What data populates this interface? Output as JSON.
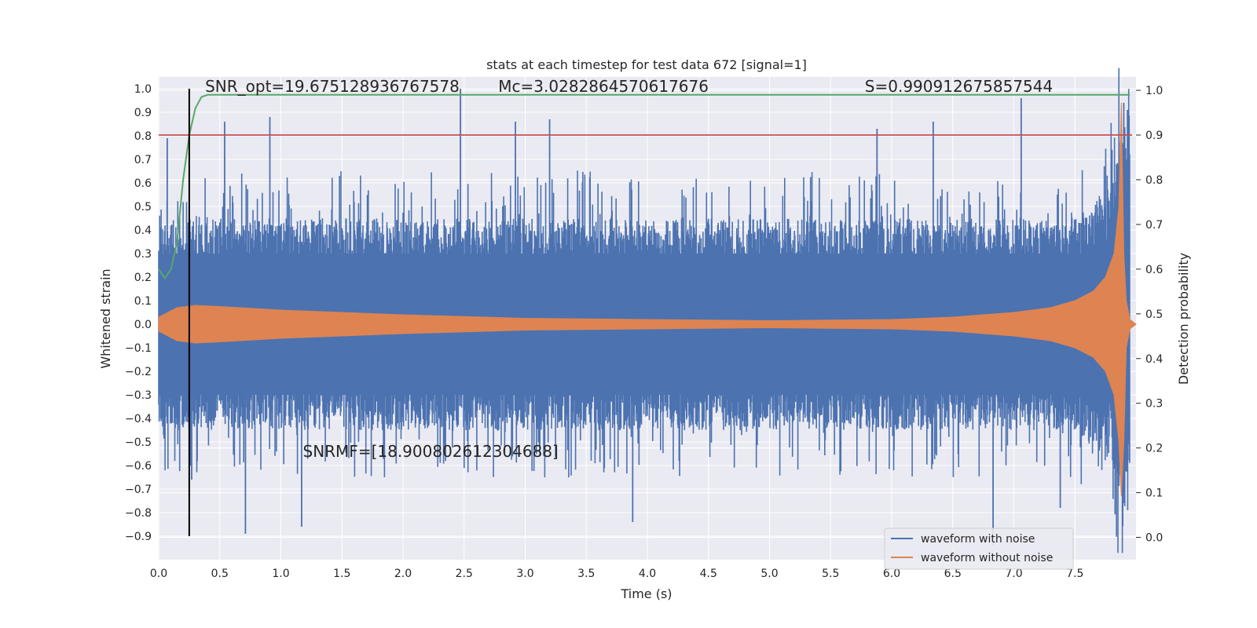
{
  "chart_data": {
    "type": "line",
    "title": "stats at each timestep for test data 672 [signal=1]",
    "xlabel": "Time (s)",
    "ylabel_left": "Whitened strain",
    "ylabel_right": "Detection probability",
    "xlim": [
      0.0,
      8.0
    ],
    "ylim_left": [
      -1.0,
      1.05
    ],
    "ylim_right": [
      -0.05,
      1.03
    ],
    "x_ticks": [
      {
        "v": 0.0,
        "label": "0.0"
      },
      {
        "v": 0.5,
        "label": "0.5"
      },
      {
        "v": 1.0,
        "label": "1.0"
      },
      {
        "v": 1.5,
        "label": "1.5"
      },
      {
        "v": 2.0,
        "label": "2.0"
      },
      {
        "v": 2.5,
        "label": "2.5"
      },
      {
        "v": 3.0,
        "label": "3.0"
      },
      {
        "v": 3.5,
        "label": "3.5"
      },
      {
        "v": 4.0,
        "label": "4.0"
      },
      {
        "v": 4.5,
        "label": "4.5"
      },
      {
        "v": 5.0,
        "label": "5.0"
      },
      {
        "v": 5.5,
        "label": "5.5"
      },
      {
        "v": 6.0,
        "label": "6.0"
      },
      {
        "v": 6.5,
        "label": "6.5"
      },
      {
        "v": 7.0,
        "label": "7.0"
      },
      {
        "v": 7.5,
        "label": "7.5"
      }
    ],
    "y_ticks_left": [
      {
        "v": 1.0,
        "label": "1.0"
      },
      {
        "v": 0.9,
        "label": "0.9"
      },
      {
        "v": 0.8,
        "label": "0.8"
      },
      {
        "v": 0.7,
        "label": "0.7"
      },
      {
        "v": 0.6,
        "label": "0.6"
      },
      {
        "v": 0.5,
        "label": "0.5"
      },
      {
        "v": 0.4,
        "label": "0.4"
      },
      {
        "v": 0.3,
        "label": "0.3"
      },
      {
        "v": 0.2,
        "label": "0.2"
      },
      {
        "v": 0.1,
        "label": "0.1"
      },
      {
        "v": 0.0,
        "label": "0.0"
      },
      {
        "v": -0.1,
        "label": "−0.1"
      },
      {
        "v": -0.2,
        "label": "−0.2"
      },
      {
        "v": -0.3,
        "label": "−0.3"
      },
      {
        "v": -0.4,
        "label": "−0.4"
      },
      {
        "v": -0.5,
        "label": "−0.5"
      },
      {
        "v": -0.6,
        "label": "−0.6"
      },
      {
        "v": -0.7,
        "label": "−0.7"
      },
      {
        "v": -0.8,
        "label": "−0.8"
      },
      {
        "v": -0.9,
        "label": "−0.9"
      }
    ],
    "y_ticks_right": [
      {
        "v": 1.0,
        "label": "1.0"
      },
      {
        "v": 0.9,
        "label": "0.9"
      },
      {
        "v": 0.8,
        "label": "0.8"
      },
      {
        "v": 0.7,
        "label": "0.7"
      },
      {
        "v": 0.6,
        "label": "0.6"
      },
      {
        "v": 0.5,
        "label": "0.5"
      },
      {
        "v": 0.4,
        "label": "0.4"
      },
      {
        "v": 0.3,
        "label": "0.3"
      },
      {
        "v": 0.2,
        "label": "0.2"
      },
      {
        "v": 0.1,
        "label": "0.1"
      },
      {
        "v": 0.0,
        "label": "0.0"
      }
    ],
    "grid": true,
    "series": [
      {
        "name": "waveform with noise",
        "axis": "left",
        "color": "#4c72b0",
        "envelope_x": [
          0.0,
          0.5,
          1.0,
          2.0,
          3.0,
          4.0,
          5.0,
          6.0,
          7.0,
          7.5,
          7.8,
          7.9,
          7.95
        ],
        "envelope_upper": [
          0.45,
          0.45,
          0.45,
          0.45,
          0.45,
          0.45,
          0.45,
          0.45,
          0.45,
          0.45,
          0.6,
          0.85,
          0.9
        ],
        "envelope_lower": [
          -0.45,
          -0.45,
          -0.45,
          -0.45,
          -0.45,
          -0.45,
          -0.45,
          -0.45,
          -0.45,
          -0.45,
          -0.6,
          -0.8,
          -0.7
        ],
        "peaks": [
          {
            "x": 0.07,
            "y": 0.79
          },
          {
            "x": 0.27,
            "y": -0.66
          },
          {
            "x": 0.54,
            "y": 0.86
          },
          {
            "x": 0.71,
            "y": -0.89
          },
          {
            "x": 0.91,
            "y": 0.88
          },
          {
            "x": 1.17,
            "y": -0.86
          },
          {
            "x": 2.47,
            "y": 1.0
          },
          {
            "x": 2.92,
            "y": 0.86
          },
          {
            "x": 3.2,
            "y": 0.87
          },
          {
            "x": 3.88,
            "y": -0.84
          },
          {
            "x": 5.88,
            "y": 0.83
          },
          {
            "x": 6.34,
            "y": 0.86
          },
          {
            "x": 6.83,
            "y": -0.94
          },
          {
            "x": 7.06,
            "y": 0.96
          },
          {
            "x": 7.38,
            "y": -0.78
          },
          {
            "x": 7.9,
            "y": 0.94
          },
          {
            "x": 7.93,
            "y": 0.91
          }
        ]
      },
      {
        "name": "waveform without noise",
        "axis": "left",
        "color": "#dd8452",
        "envelope_x": [
          0.0,
          0.15,
          0.3,
          0.5,
          1.0,
          2.0,
          3.0,
          4.0,
          5.0,
          6.0,
          6.5,
          7.0,
          7.3,
          7.5,
          7.65,
          7.75,
          7.82,
          7.86,
          7.88,
          7.9,
          7.92,
          7.95,
          8.0
        ],
        "envelope_upper": [
          0.03,
          0.07,
          0.08,
          0.075,
          0.06,
          0.04,
          0.025,
          0.02,
          0.015,
          0.02,
          0.03,
          0.05,
          0.07,
          0.1,
          0.14,
          0.2,
          0.3,
          0.5,
          0.94,
          0.3,
          0.1,
          0.02,
          0.0
        ],
        "envelope_lower": [
          -0.03,
          -0.07,
          -0.08,
          -0.075,
          -0.06,
          -0.04,
          -0.025,
          -0.02,
          -0.015,
          -0.02,
          -0.03,
          -0.05,
          -0.07,
          -0.1,
          -0.14,
          -0.2,
          -0.3,
          -0.5,
          -0.73,
          -0.5,
          -0.1,
          -0.02,
          0.0
        ]
      },
      {
        "name": "",
        "axis": "right",
        "color": "#55a868",
        "x": [
          0.0,
          0.05,
          0.1,
          0.15,
          0.2,
          0.25,
          0.3,
          0.35,
          0.4,
          0.5,
          1.0,
          2.0,
          3.0,
          4.0,
          5.0,
          6.0,
          7.0,
          7.5,
          7.95
        ],
        "y": [
          0.6,
          0.58,
          0.6,
          0.66,
          0.8,
          0.9,
          0.96,
          0.985,
          0.99,
          0.99,
          0.99,
          0.99,
          0.99,
          0.99,
          0.99,
          0.99,
          0.99,
          0.99,
          0.99
        ]
      }
    ],
    "threshold_line": {
      "axis": "right",
      "y": 0.9,
      "color": "#c44e52"
    },
    "vertical_line": {
      "x": 0.25,
      "y_from": -0.9,
      "y_to": 1.0,
      "axis": "left",
      "color": "#000000"
    },
    "annotations": [
      {
        "text": "SNR_opt=19.675128936767578",
        "x": 0.2,
        "y": 1.02
      },
      {
        "text": "Mc=3.0282864570617676",
        "x": 2.6,
        "y": 1.02
      },
      {
        "text": "S=0.990912675857544",
        "x": 5.6,
        "y": 1.02
      },
      {
        "text": "SNRMF=[18.900802612304688]",
        "x": 1.0,
        "y": -0.53
      }
    ],
    "legend": {
      "placement": "lower-right",
      "entries": [
        {
          "label": "waveform with noise",
          "color": "#4c72b0"
        },
        {
          "label": "waveform without noise",
          "color": "#dd8452"
        }
      ]
    }
  }
}
